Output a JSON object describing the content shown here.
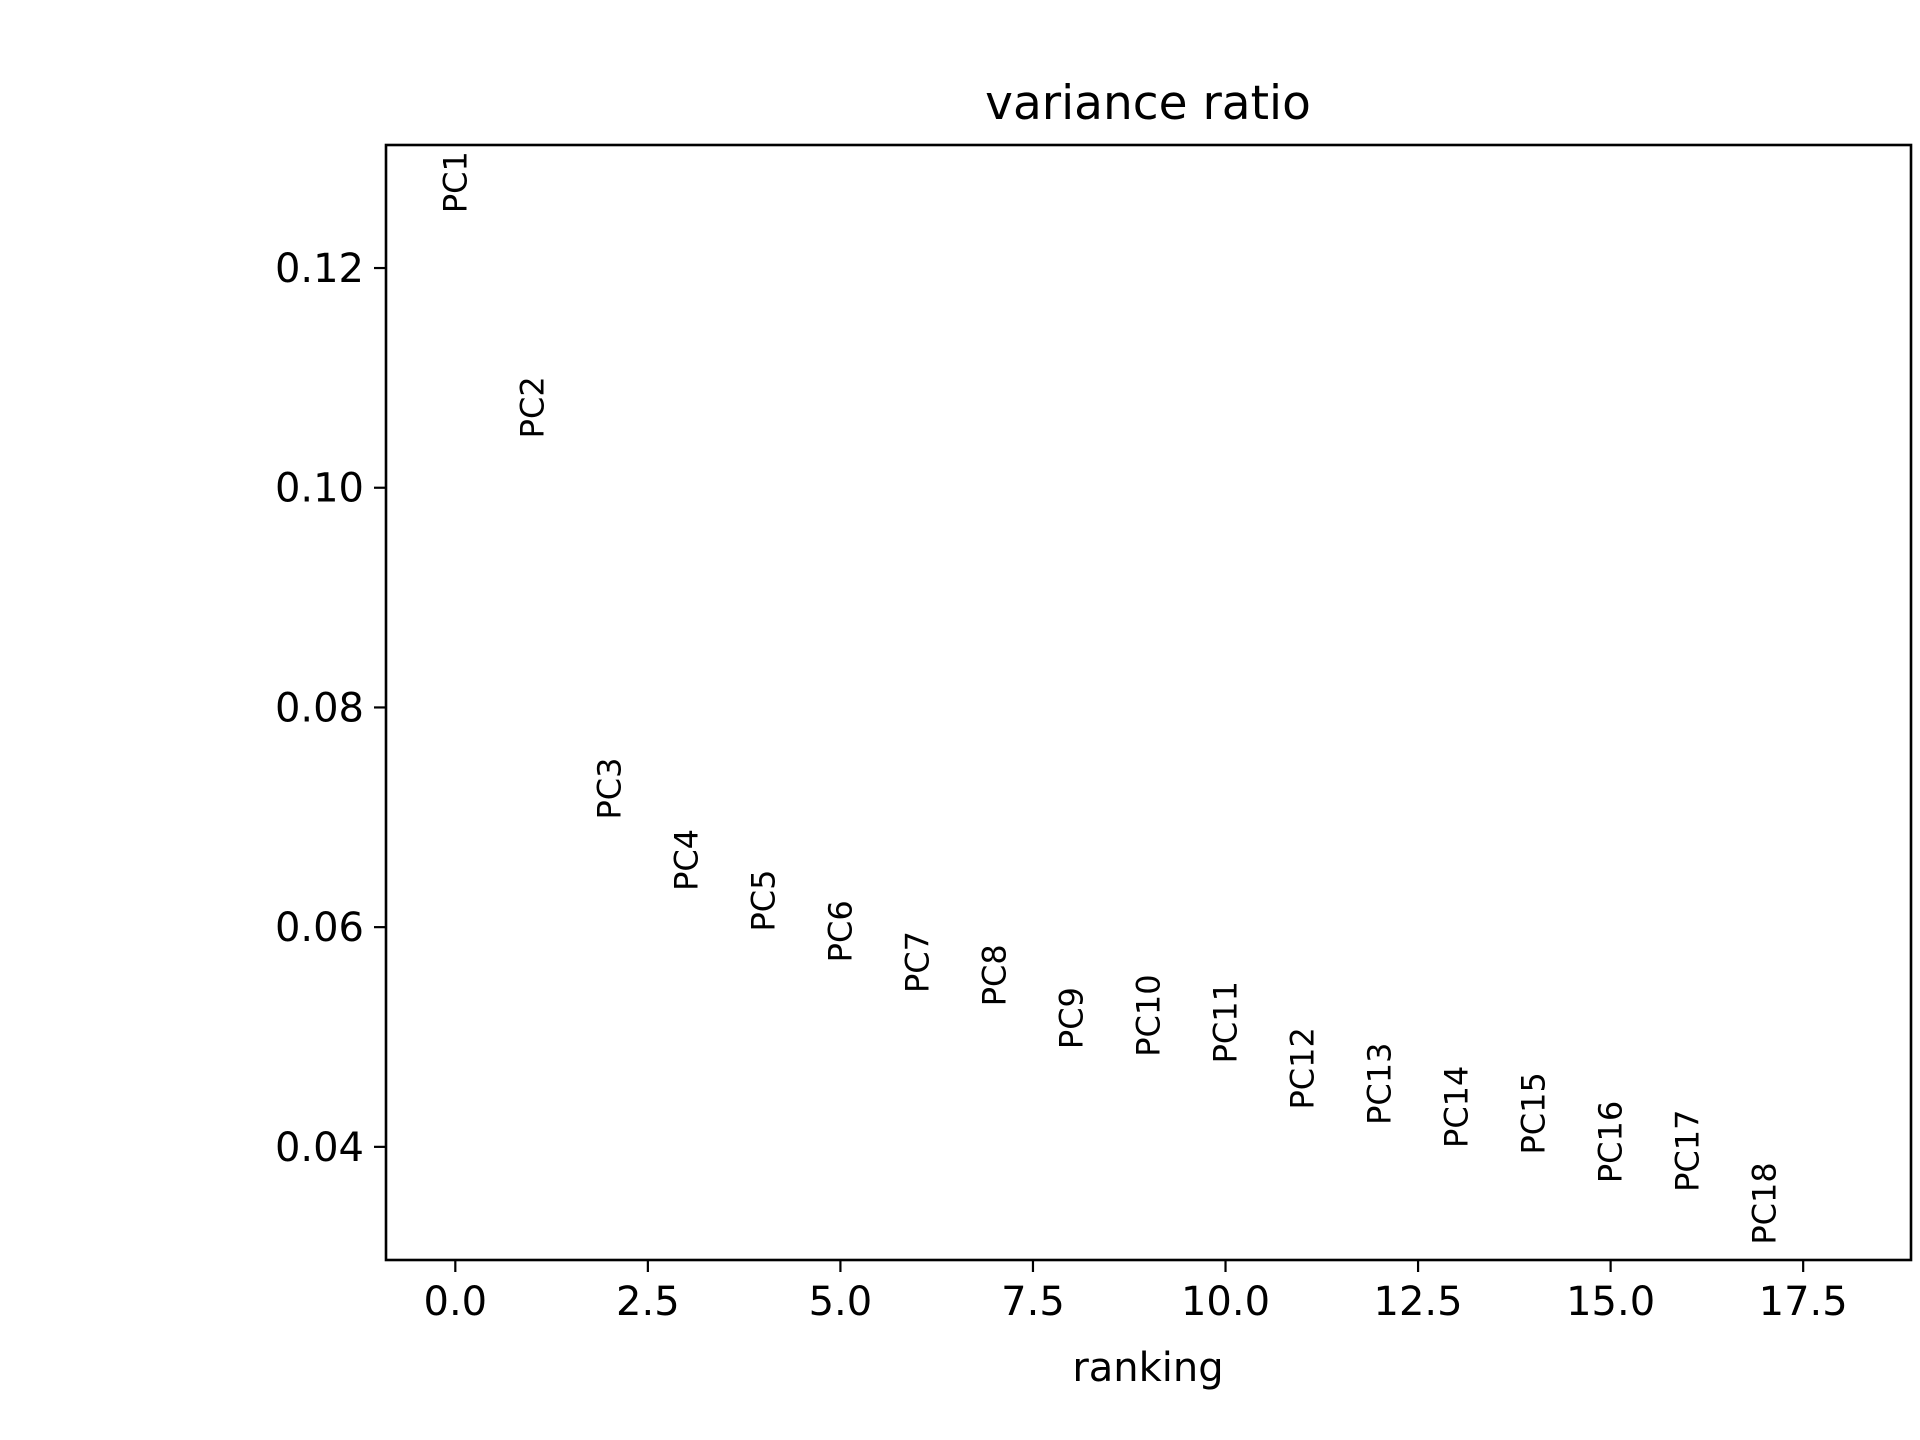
{
  "chart_data": {
    "type": "scatter",
    "title": "variance ratio",
    "xlabel": "ranking",
    "ylabel": "",
    "xlim": [
      -0.9,
      18.9
    ],
    "ylim": [
      0.0297,
      0.1312
    ],
    "xticks": [
      0.0,
      2.5,
      5.0,
      7.5,
      10.0,
      12.5,
      15.0,
      17.5
    ],
    "xtick_labels": [
      "0.0",
      "2.5",
      "5.0",
      "7.5",
      "10.0",
      "12.5",
      "15.0",
      "17.5"
    ],
    "yticks": [
      0.04,
      0.06,
      0.08,
      0.1,
      0.12
    ],
    "ytick_labels": [
      "0.04",
      "0.06",
      "0.08",
      "0.10",
      "0.12"
    ],
    "grid": false,
    "legend": "none",
    "marker": "text labels",
    "points": [
      {
        "label": "PC1",
        "x": 0,
        "y": 0.125
      },
      {
        "label": "PC2",
        "x": 1,
        "y": 0.1045
      },
      {
        "label": "PC3",
        "x": 2,
        "y": 0.0698
      },
      {
        "label": "PC4",
        "x": 3,
        "y": 0.0633
      },
      {
        "label": "PC5",
        "x": 4,
        "y": 0.0596
      },
      {
        "label": "PC6",
        "x": 5,
        "y": 0.0568
      },
      {
        "label": "PC7",
        "x": 6,
        "y": 0.054
      },
      {
        "label": "PC8",
        "x": 7,
        "y": 0.0528
      },
      {
        "label": "PC9",
        "x": 8,
        "y": 0.0489
      },
      {
        "label": "PC10",
        "x": 9,
        "y": 0.0482
      },
      {
        "label": "PC11",
        "x": 10,
        "y": 0.0476
      },
      {
        "label": "PC12",
        "x": 11,
        "y": 0.0434
      },
      {
        "label": "PC13",
        "x": 12,
        "y": 0.042
      },
      {
        "label": "PC14",
        "x": 13,
        "y": 0.0399
      },
      {
        "label": "PC15",
        "x": 14,
        "y": 0.0393
      },
      {
        "label": "PC16",
        "x": 15,
        "y": 0.0367
      },
      {
        "label": "PC17",
        "x": 16,
        "y": 0.0359
      },
      {
        "label": "PC18",
        "x": 17,
        "y": 0.0311
      }
    ],
    "colors": {
      "text": "#000000",
      "axes": "#000000",
      "background": "#ffffff"
    }
  }
}
